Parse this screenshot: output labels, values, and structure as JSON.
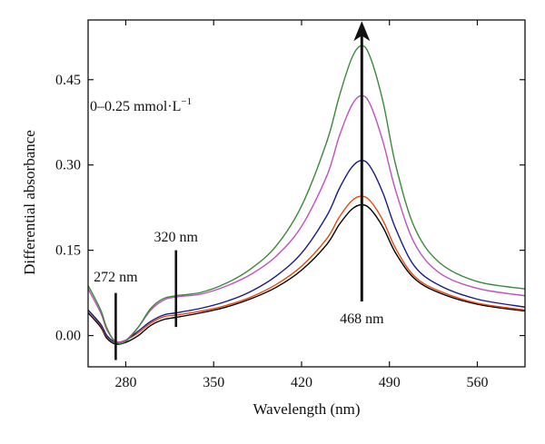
{
  "chart_data": {
    "type": "line",
    "title": "",
    "xlabel": "Wavelength (nm)",
    "ylabel": "Differential absorbance",
    "xlim": [
      250,
      598
    ],
    "ylim": [
      -0.055,
      0.555
    ],
    "xticks": [
      280,
      350,
      420,
      490,
      560
    ],
    "yticks": [
      0.0,
      0.15,
      0.3,
      0.45
    ],
    "ytick_labels": [
      "0.00",
      "0.15",
      "0.30",
      "0.45"
    ],
    "grid": false,
    "legend": "none",
    "series": [
      {
        "color": "#000000",
        "x": [
          250,
          260,
          265,
          272,
          280,
          290,
          300,
          310,
          320,
          340,
          360,
          380,
          400,
          420,
          440,
          450,
          460,
          468,
          475,
          485,
          495,
          510,
          530,
          560,
          598
        ],
        "y": [
          0.04,
          0.015,
          -0.005,
          -0.015,
          -0.012,
          0.0,
          0.018,
          0.028,
          0.032,
          0.04,
          0.05,
          0.065,
          0.085,
          0.115,
          0.16,
          0.195,
          0.222,
          0.23,
          0.222,
          0.19,
          0.145,
          0.1,
          0.075,
          0.055,
          0.043
        ]
      },
      {
        "color": "#e8480c",
        "x": [
          250,
          260,
          265,
          272,
          280,
          290,
          300,
          310,
          320,
          340,
          360,
          380,
          400,
          420,
          440,
          450,
          460,
          468,
          475,
          485,
          495,
          510,
          530,
          560,
          598
        ],
        "y": [
          0.045,
          0.018,
          -0.002,
          -0.012,
          -0.008,
          0.005,
          0.022,
          0.033,
          0.036,
          0.043,
          0.053,
          0.068,
          0.09,
          0.122,
          0.17,
          0.208,
          0.237,
          0.245,
          0.236,
          0.202,
          0.153,
          0.104,
          0.078,
          0.057,
          0.045
        ]
      },
      {
        "color": "#1a1a8c",
        "x": [
          250,
          260,
          265,
          272,
          280,
          290,
          300,
          310,
          320,
          340,
          360,
          380,
          400,
          420,
          440,
          450,
          460,
          468,
          475,
          485,
          495,
          510,
          530,
          560,
          598
        ],
        "y": [
          0.045,
          0.02,
          0.0,
          -0.012,
          -0.008,
          0.008,
          0.025,
          0.036,
          0.04,
          0.048,
          0.06,
          0.078,
          0.105,
          0.145,
          0.21,
          0.258,
          0.296,
          0.308,
          0.296,
          0.25,
          0.188,
          0.122,
          0.088,
          0.064,
          0.05
        ]
      },
      {
        "color": "#c050c0",
        "x": [
          250,
          260,
          265,
          272,
          280,
          290,
          300,
          310,
          320,
          340,
          360,
          380,
          400,
          420,
          440,
          450,
          460,
          468,
          475,
          485,
          495,
          510,
          530,
          560,
          598
        ],
        "y": [
          0.082,
          0.04,
          0.01,
          -0.01,
          -0.008,
          0.015,
          0.045,
          0.062,
          0.068,
          0.073,
          0.087,
          0.108,
          0.14,
          0.192,
          0.28,
          0.35,
          0.405,
          0.422,
          0.405,
          0.34,
          0.255,
          0.162,
          0.11,
          0.083,
          0.07
        ]
      },
      {
        "color": "#3a8a3a",
        "x": [
          250,
          260,
          265,
          272,
          280,
          290,
          300,
          310,
          320,
          340,
          360,
          380,
          400,
          420,
          440,
          450,
          460,
          468,
          475,
          485,
          495,
          510,
          530,
          560,
          598
        ],
        "y": [
          0.088,
          0.045,
          0.013,
          -0.012,
          -0.01,
          0.015,
          0.048,
          0.065,
          0.07,
          0.076,
          0.092,
          0.118,
          0.158,
          0.228,
          0.34,
          0.42,
          0.488,
          0.51,
          0.488,
          0.41,
          0.3,
          0.19,
          0.128,
          0.095,
          0.082
        ]
      }
    ],
    "annotations": [
      {
        "text": "0–0.25 mmol·L",
        "superscript": "−1",
        "x": 292,
        "y": 0.395
      },
      {
        "text": "320 nm",
        "x": 320,
        "y": 0.165
      },
      {
        "text": "272 nm",
        "x": 272,
        "y": 0.095
      },
      {
        "text": "468 nm",
        "x": 468,
        "y": 0.022
      }
    ],
    "markers": [
      {
        "kind": "line",
        "x": 272,
        "y1": -0.043,
        "y2": 0.075
      },
      {
        "kind": "line",
        "x": 320,
        "y1": 0.015,
        "y2": 0.15
      },
      {
        "kind": "arrow-up",
        "x": 468,
        "y1": 0.06,
        "y2": 0.553
      }
    ]
  }
}
